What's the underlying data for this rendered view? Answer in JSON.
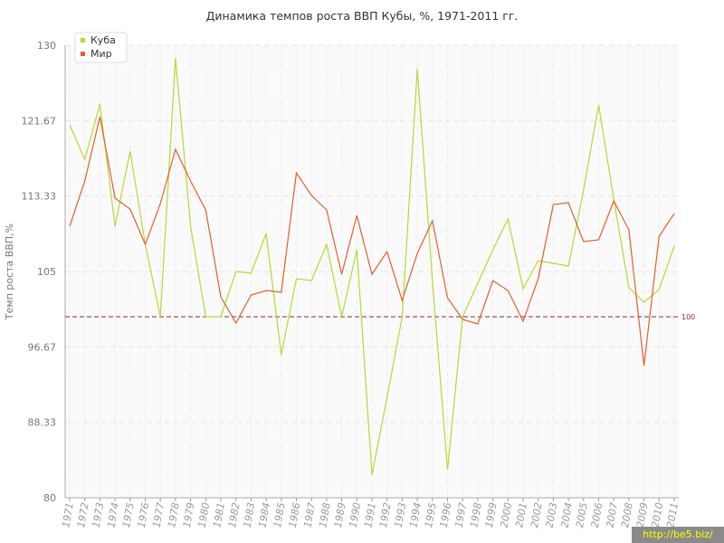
{
  "chart_data": {
    "type": "line",
    "title": "Динамика темпов роста ВВП Кубы, %, 1971-2011 гг.",
    "xlabel": "",
    "ylabel": "Темп роста ВВП,%",
    "ylim": [
      80,
      130
    ],
    "yticks": [
      "80",
      "88.33",
      "96.67",
      "105",
      "113.33",
      "121.67",
      "130"
    ],
    "categories": [
      "1971",
      "1972",
      "1973",
      "1974",
      "1975",
      "1976",
      "1977",
      "1978",
      "1979",
      "1980",
      "1981",
      "1982",
      "1983",
      "1984",
      "1985",
      "1986",
      "1987",
      "1988",
      "1989",
      "1990",
      "1991",
      "1992",
      "1993",
      "1994",
      "1995",
      "1996",
      "1997",
      "1998",
      "1999",
      "2000",
      "2001",
      "2002",
      "2003",
      "2004",
      "2005",
      "2006",
      "2007",
      "2008",
      "2009",
      "2010",
      "2011"
    ],
    "series": [
      {
        "name": "Куба",
        "color": "#b5d935",
        "values": [
          121.2,
          117.4,
          123.5,
          110.0,
          118.3,
          108.0,
          100.0,
          128.6,
          110.0,
          100.0,
          100.0,
          105.0,
          104.8,
          109.2,
          95.8,
          104.2,
          104.0,
          108.0,
          100.0,
          107.4,
          82.5,
          91.1,
          100.0,
          127.4,
          104.0,
          83.1,
          100.0,
          103.7,
          107.4,
          110.8,
          103.1,
          106.2,
          105.9,
          105.6,
          114.0,
          123.4,
          113.0,
          103.2,
          101.6,
          103.0,
          107.8
        ]
      },
      {
        "name": "Мир",
        "color": "#e06030",
        "values": [
          110.0,
          115.0,
          122.1,
          113.1,
          111.9,
          108.0,
          112.5,
          118.5,
          115.0,
          111.8,
          102.2,
          99.3,
          102.4,
          102.9,
          102.7,
          115.9,
          113.4,
          111.8,
          104.7,
          111.2,
          104.7,
          107.2,
          101.8,
          107.0,
          110.6,
          102.1,
          99.7,
          99.2,
          104.0,
          102.9,
          99.5,
          104.2,
          112.4,
          112.6,
          108.3,
          108.5,
          112.8,
          109.6,
          94.6,
          108.9,
          111.4
        ]
      }
    ],
    "reference_line": {
      "value": 100,
      "label": "100",
      "color": "#8a2a3a"
    },
    "legend": {
      "placement": "top-left"
    },
    "grid": true
  },
  "watermark": "http://be5.biz/"
}
